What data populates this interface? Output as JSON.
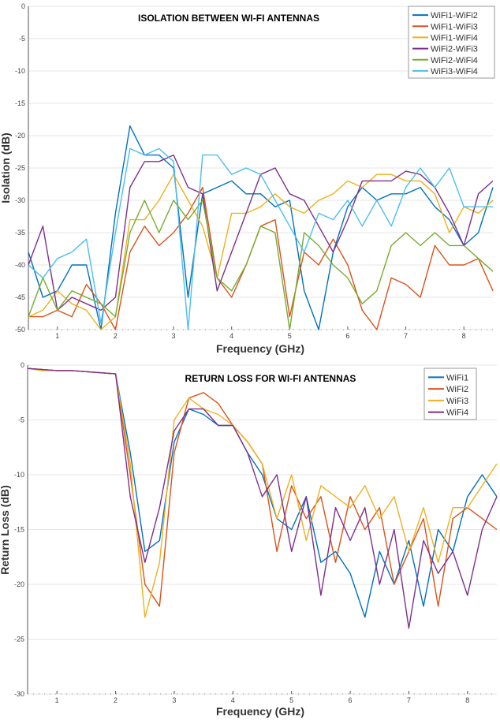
{
  "colors": [
    "#0072BD",
    "#D95319",
    "#EDB120",
    "#7E2F8E",
    "#77AC30",
    "#4DBEEE"
  ],
  "chart_data": [
    {
      "type": "line",
      "title": "ISOLATION BETWEEN WI-FI ANTENNAS",
      "xlabel": "Frequency (GHz)",
      "ylabel": "Isolation (dB)",
      "xlim": [
        0.5,
        8.5
      ],
      "ylim": [
        -50,
        0
      ],
      "xticks": [
        "1",
        "2",
        "3",
        "4",
        "5",
        "6",
        "7",
        "8"
      ],
      "yticks": [
        "0",
        "-5",
        "-10",
        "-15",
        "-20",
        "-25",
        "-30",
        "-35",
        "-40",
        "-45",
        "-50"
      ],
      "grid": "horizontal",
      "legend_position": "top-right",
      "x": [
        0.5,
        0.75,
        1,
        1.25,
        1.5,
        1.75,
        2,
        2.25,
        2.5,
        2.75,
        3,
        3.25,
        3.5,
        3.75,
        4,
        4.25,
        4.5,
        4.75,
        5,
        5.25,
        5.5,
        5.75,
        6,
        6.25,
        6.5,
        6.75,
        7,
        7.25,
        7.5,
        7.75,
        8,
        8.25,
        8.5
      ],
      "series": [
        {
          "name": "WiFi1-WiFi2",
          "values": [
            -38,
            -45,
            -44,
            -40,
            -40,
            -50,
            -32,
            -18.5,
            -23,
            -23,
            -25,
            -45,
            -29,
            -28,
            -27,
            -29,
            -29,
            -31,
            -30,
            -44,
            -50,
            -38,
            -31,
            -28,
            -30,
            -29,
            -29,
            -28,
            -31,
            -33,
            -37,
            -35,
            -28
          ]
        },
        {
          "name": "WiFi1-WiFi3",
          "values": [
            -48,
            -48,
            -47,
            -48,
            -43,
            -46,
            -50,
            -38,
            -34,
            -37,
            -35,
            -32,
            -28,
            -42,
            -45,
            -40,
            -34,
            -33,
            -48,
            -38,
            -40,
            -36,
            -40,
            -47,
            -50,
            -42,
            -43,
            -45,
            -37,
            -40,
            -40,
            -39,
            -44
          ]
        },
        {
          "name": "WiFi1-WiFi4",
          "values": [
            -48,
            -47,
            -44,
            -46,
            -47,
            -50,
            -48,
            -33,
            -33,
            -30,
            -26,
            -30,
            -34,
            -42,
            -32,
            -32,
            -31,
            -29,
            -31,
            -32,
            -30,
            -29,
            -27,
            -28,
            -26,
            -26,
            -27,
            -27,
            -29,
            -35,
            -31,
            -32,
            -30
          ]
        },
        {
          "name": "WiFi2-WiFi3",
          "values": [
            -40,
            -34,
            -47,
            -45,
            -46,
            -47,
            -45,
            -28,
            -24,
            -24,
            -23,
            -28,
            -29,
            -44,
            -38,
            -32,
            -26,
            -25,
            -29,
            -30,
            -34,
            -38,
            -33,
            -27,
            -27,
            -27,
            -25.5,
            -26,
            -28,
            -32,
            -37,
            -29,
            -27
          ]
        },
        {
          "name": "WiFi2-WiFi4",
          "values": [
            -48,
            -42,
            -47,
            -44,
            -45,
            -46,
            -48,
            -35,
            -30,
            -35,
            -30,
            -33,
            -30,
            -42,
            -44,
            -40,
            -34,
            -35,
            -50,
            -35,
            -37,
            -40,
            -42,
            -46,
            -44,
            -37,
            -35,
            -37,
            -35,
            -37,
            -37,
            -39,
            -41
          ]
        },
        {
          "name": "WiFi3-WiFi4",
          "values": [
            -40,
            -42,
            -39,
            -38,
            -36,
            -49,
            -35,
            -22,
            -23,
            -22,
            -24,
            -50,
            -23,
            -23,
            -26,
            -25,
            -26,
            -30,
            -34,
            -38,
            -32,
            -33,
            -30,
            -34,
            -30,
            -34,
            -28,
            -25,
            -28,
            -25,
            -31,
            -31,
            -31
          ]
        }
      ]
    },
    {
      "type": "line",
      "title": "RETURN LOSS FOR WI-FI ANTENNAS",
      "xlabel": "Frequency (GHz)",
      "ylabel": "Return Loss (dB)",
      "xlim": [
        0.5,
        8.5
      ],
      "ylim": [
        -30,
        0
      ],
      "xticks": [
        "1",
        "2",
        "3",
        "4",
        "5",
        "6",
        "7",
        "8"
      ],
      "yticks": [
        "0",
        "-5",
        "-10",
        "-15",
        "-20",
        "-25",
        "-30"
      ],
      "grid": "horizontal",
      "legend_position": "top-right",
      "x": [
        0.5,
        0.75,
        1,
        1.25,
        1.5,
        1.75,
        2,
        2.25,
        2.5,
        2.75,
        3,
        3.25,
        3.5,
        3.75,
        4,
        4.25,
        4.5,
        4.75,
        5,
        5.25,
        5.5,
        5.75,
        6,
        6.25,
        6.5,
        6.75,
        7,
        7.25,
        7.5,
        7.75,
        8,
        8.25,
        8.5
      ],
      "series": [
        {
          "name": "WiFi1",
          "values": [
            -0.3,
            -0.4,
            -0.5,
            -0.5,
            -0.6,
            -0.7,
            -0.8,
            -8,
            -17,
            -16,
            -7,
            -4,
            -4.5,
            -5.5,
            -5.5,
            -8,
            -10,
            -14,
            -15,
            -12,
            -18,
            -17,
            -19,
            -23,
            -17,
            -20,
            -16,
            -22,
            -15,
            -17,
            -12,
            -10,
            -12
          ]
        },
        {
          "name": "WiFi2",
          "values": [
            -0.3,
            -0.4,
            -0.5,
            -0.5,
            -0.6,
            -0.7,
            -0.8,
            -10,
            -20,
            -22,
            -8,
            -3,
            -2.5,
            -3.5,
            -5.5,
            -7,
            -9,
            -17,
            -11,
            -14,
            -12,
            -18,
            -12,
            -15,
            -13,
            -20,
            -17,
            -14,
            -22,
            -14,
            -13,
            -14,
            -15
          ]
        },
        {
          "name": "WiFi3",
          "values": [
            -0.3,
            -0.5,
            -0.5,
            -0.5,
            -0.6,
            -0.7,
            -0.8,
            -9,
            -23,
            -18,
            -5,
            -3,
            -4,
            -4.5,
            -5.5,
            -7,
            -9,
            -14,
            -10,
            -16,
            -11,
            -12,
            -13,
            -11,
            -14,
            -12,
            -17,
            -13,
            -18,
            -13,
            -13,
            -11,
            -9
          ]
        },
        {
          "name": "WiFi4",
          "values": [
            -0.3,
            -0.4,
            -0.5,
            -0.5,
            -0.6,
            -0.7,
            -0.8,
            -12,
            -18,
            -13,
            -6,
            -4,
            -4,
            -5.5,
            -5.5,
            -8,
            -12,
            -10,
            -17,
            -12,
            -21,
            -13,
            -16,
            -13,
            -20,
            -15,
            -24,
            -16,
            -19,
            -17,
            -21,
            -15,
            -12
          ]
        }
      ]
    }
  ]
}
